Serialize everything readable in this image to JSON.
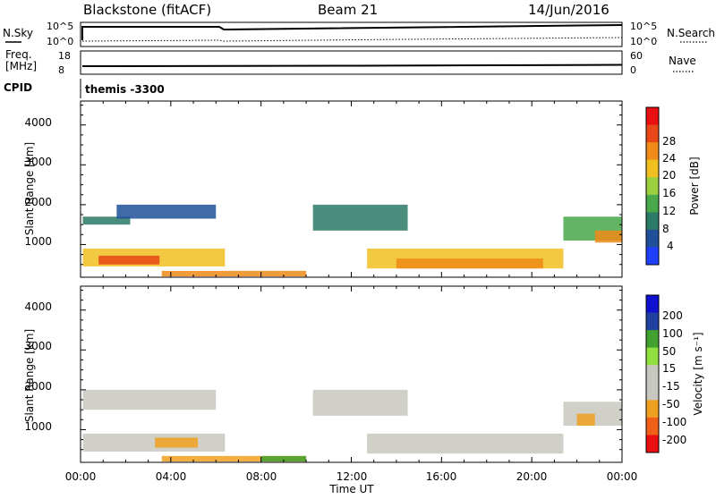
{
  "header": {
    "station": "Blackstone (fitACF)",
    "beam": "Beam 21",
    "date": "14/Jun/2016"
  },
  "top_panels": {
    "nsky_label": "N.Sky",
    "nsearch_label": "N.Search",
    "noise_ticks": [
      "10^5",
      "10^0"
    ],
    "freq_label_1": "Freq.",
    "freq_label_2": "[MHz]",
    "freq_ticks": [
      "18",
      "8"
    ],
    "nave_label": "Nave",
    "nave_ticks": [
      "60",
      "0"
    ],
    "cpid_label": "CPID",
    "cpid_value": "themis -3300"
  },
  "colors": {
    "power_scale": [
      "#1f3fff",
      "#20509a",
      "#2d7a66",
      "#48a84a",
      "#9cd040",
      "#f0c020",
      "#f08a18",
      "#e84818",
      "#e81010"
    ],
    "velocity_scale": [
      "#e81010",
      "#f06018",
      "#f0a020",
      "#c8c8c0",
      "#c8c8c0",
      "#90e040",
      "#40a030",
      "#2040a0",
      "#1010d0"
    ]
  },
  "chart_data": [
    {
      "type": "heatmap",
      "title": "Power",
      "ylabel": "Slant Range [km]",
      "xlabel": "Time UT",
      "ylim": [
        180,
        4600
      ],
      "yticks": [
        "1000",
        "2000",
        "3000",
        "4000"
      ],
      "xticks": [
        "00:00",
        "04:00",
        "08:00",
        "12:00",
        "16:00",
        "20:00",
        "00:00"
      ],
      "colorbar_label": "Power [dB]",
      "colorbar_ticks": [
        "4",
        "8",
        "12",
        "16",
        "20",
        "24",
        "28"
      ],
      "regions": [
        {
          "t0": 0.1,
          "t1": 6.4,
          "r0": 450,
          "r1": 900,
          "value": 17
        },
        {
          "t0": 0.8,
          "t1": 3.5,
          "r0": 500,
          "r1": 720,
          "value": 24
        },
        {
          "t0": 0.1,
          "t1": 2.2,
          "r0": 1500,
          "r1": 1700,
          "value": 8
        },
        {
          "t0": 1.6,
          "t1": 6.0,
          "r0": 1650,
          "r1": 2000,
          "value": 6
        },
        {
          "t0": 3.6,
          "t1": 10.0,
          "r0": 200,
          "r1": 340,
          "value": 20
        },
        {
          "t0": 10.3,
          "t1": 14.5,
          "r0": 1350,
          "r1": 2000,
          "value": 9
        },
        {
          "t0": 12.7,
          "t1": 21.4,
          "r0": 400,
          "r1": 900,
          "value": 17
        },
        {
          "t0": 14.0,
          "t1": 20.5,
          "r0": 400,
          "r1": 650,
          "value": 22
        },
        {
          "t0": 21.4,
          "t1": 24.0,
          "r0": 1100,
          "r1": 1700,
          "value": 12
        },
        {
          "t0": 22.8,
          "t1": 24.0,
          "r0": 1050,
          "r1": 1350,
          "value": 22
        }
      ]
    },
    {
      "type": "heatmap",
      "title": "Velocity",
      "ylabel": "Slant Range [km]",
      "xlabel": "Time UT",
      "ylim": [
        180,
        4600
      ],
      "yticks": [
        "1000",
        "2000",
        "3000",
        "4000"
      ],
      "xticks": [
        "00:00",
        "04:00",
        "08:00",
        "12:00",
        "16:00",
        "20:00",
        "00:00"
      ],
      "colorbar_label": "Velocity [m s⁻¹]",
      "colorbar_ticks": [
        "200",
        "100",
        "50",
        "15",
        "-15",
        "-50",
        "-100",
        "-200"
      ],
      "regions": [
        {
          "t0": 0.1,
          "t1": 6.4,
          "r0": 450,
          "r1": 900,
          "value": 0
        },
        {
          "t0": 3.3,
          "t1": 5.2,
          "r0": 550,
          "r1": 800,
          "value": -70
        },
        {
          "t0": 0.1,
          "t1": 6.0,
          "r0": 1500,
          "r1": 2000,
          "value": 0
        },
        {
          "t0": 3.6,
          "t1": 10.0,
          "r0": 200,
          "r1": 340,
          "value": -60
        },
        {
          "t0": 8.0,
          "t1": 10.0,
          "r0": 200,
          "r1": 340,
          "value": 40
        },
        {
          "t0": 10.3,
          "t1": 14.5,
          "r0": 1350,
          "r1": 2000,
          "value": 0
        },
        {
          "t0": 12.7,
          "t1": 21.4,
          "r0": 400,
          "r1": 900,
          "value": 0
        },
        {
          "t0": 21.4,
          "t1": 24.0,
          "r0": 1100,
          "r1": 1700,
          "value": 0
        },
        {
          "t0": 22.0,
          "t1": 22.8,
          "r0": 1100,
          "r1": 1400,
          "value": -60
        }
      ]
    }
  ]
}
